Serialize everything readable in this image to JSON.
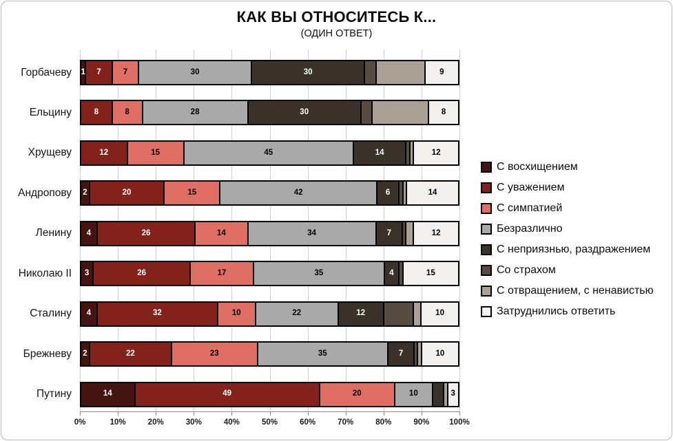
{
  "title": "КАК ВЫ ОТНОСИТЕСЬ К...",
  "subtitle": "(ОДИН ОТВЕТ)",
  "chart_data": {
    "type": "bar",
    "orientation": "horizontal",
    "stacked_percent": true,
    "legend_position": "right",
    "grid": true,
    "xlim": [
      0,
      100
    ],
    "x_ticks": [
      "0%",
      "10%",
      "20%",
      "30%",
      "40%",
      "50%",
      "60%",
      "70%",
      "80%",
      "90%",
      "100%"
    ],
    "categories": [
      "Горбачеву",
      "Ельцину",
      "Хрущеву",
      "Андропову",
      "Ленину",
      "Николаю II",
      "Сталину",
      "Брежневу",
      "Путину"
    ],
    "series": [
      {
        "name": "С восхищением",
        "color": "#451410",
        "label_color": "#ffffff",
        "values": [
          1,
          0,
          0,
          2,
          4,
          3,
          4,
          2,
          14
        ]
      },
      {
        "name": "С уважением",
        "color": "#83221A",
        "label_color": "#ffffff",
        "values": [
          7,
          8,
          12,
          20,
          26,
          26,
          32,
          22,
          49
        ]
      },
      {
        "name": "С симпатией",
        "color": "#DF6F62",
        "label_color": "#000000",
        "values": [
          7,
          8,
          15,
          15,
          14,
          17,
          10,
          23,
          20
        ]
      },
      {
        "name": "Безразлично",
        "color": "#A9A9A9",
        "label_color": "#000000",
        "values": [
          30,
          28,
          45,
          42,
          34,
          35,
          22,
          35,
          10
        ]
      },
      {
        "name": "С неприязнью, раздражением",
        "color": "#3A3129",
        "label_color": "#ffffff",
        "values": [
          30,
          30,
          14,
          6,
          7,
          4,
          12,
          7,
          3
        ]
      },
      {
        "name": "Со страхом",
        "color": "#574C41",
        "label_color": "#ffffff",
        "values": [
          3,
          3,
          1,
          1,
          1,
          1,
          8,
          1,
          0
        ]
      },
      {
        "name": "С отвращением, с ненавистью",
        "color": "#ABA094",
        "label_color": "#000000",
        "values": [
          13,
          15,
          1,
          1,
          2,
          0,
          2,
          1,
          1
        ]
      },
      {
        "name": "Затруднились ответить",
        "color": "#F1F0EE",
        "label_color": "#000000",
        "values": [
          9,
          8,
          12,
          14,
          12,
          15,
          10,
          10,
          3
        ]
      }
    ],
    "shown_labels": [
      [
        "1",
        "7",
        "7",
        "30",
        "30",
        "",
        "",
        "9"
      ],
      [
        "",
        "8",
        "8",
        "28",
        "30",
        "",
        "",
        "8"
      ],
      [
        "",
        "12",
        "15",
        "45",
        "14",
        "",
        "",
        "12"
      ],
      [
        "2",
        "20",
        "15",
        "42",
        "6",
        "",
        "",
        "14"
      ],
      [
        "4",
        "26",
        "14",
        "34",
        "7",
        "",
        "",
        "12"
      ],
      [
        "3",
        "26",
        "17",
        "35",
        "4",
        "",
        "",
        "15"
      ],
      [
        "4",
        "32",
        "10",
        "22",
        "12",
        "",
        "",
        "10"
      ],
      [
        "2",
        "22",
        "23",
        "35",
        "7",
        "",
        "",
        "10"
      ],
      [
        "14",
        "49",
        "20",
        "10",
        "",
        "",
        "",
        "3"
      ]
    ]
  }
}
